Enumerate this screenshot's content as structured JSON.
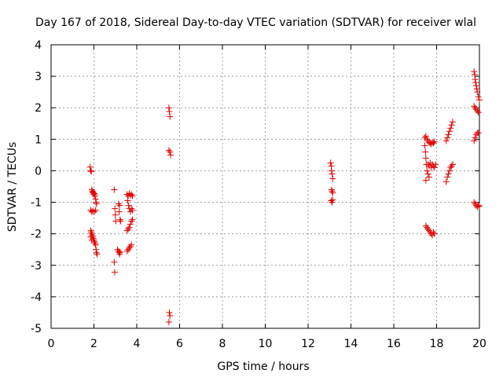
{
  "chart_data": {
    "type": "scatter",
    "title": "Day 167 of 2018, Sidereal Day-to-day VTEC variation (SDTVAR) for receiver wlal",
    "xlabel": "GPS time / hours",
    "ylabel": "SDTVAR / TECUs",
    "xlim": [
      0,
      20
    ],
    "ylim": [
      -5,
      4
    ],
    "xticks": [
      "0",
      "2",
      "4",
      "6",
      "8",
      "10",
      "12",
      "14",
      "16",
      "18",
      "20"
    ],
    "yticks": [
      "4",
      "3",
      "2",
      "1",
      "0",
      "-1",
      "-2",
      "-3",
      "-4",
      "-5"
    ],
    "grid": true,
    "marker": "+",
    "color": "#e00000",
    "series": [
      {
        "name": "SDTVAR",
        "points": [
          [
            1.82,
            0.12
          ],
          [
            1.85,
            0.0
          ],
          [
            1.88,
            -0.02
          ],
          [
            1.9,
            -0.6
          ],
          [
            1.93,
            -0.65
          ],
          [
            1.95,
            -0.7
          ],
          [
            1.97,
            -0.68
          ],
          [
            2.0,
            -0.75
          ],
          [
            2.02,
            -0.72
          ],
          [
            2.05,
            -0.8
          ],
          [
            2.08,
            -0.9
          ],
          [
            2.1,
            -1.0
          ],
          [
            2.12,
            -1.05
          ],
          [
            1.85,
            -1.25
          ],
          [
            1.9,
            -1.3
          ],
          [
            1.95,
            -1.28
          ],
          [
            2.02,
            -1.3
          ],
          [
            2.08,
            -1.25
          ],
          [
            1.85,
            -1.9
          ],
          [
            1.88,
            -1.95
          ],
          [
            1.9,
            -2.0
          ],
          [
            1.92,
            -2.05
          ],
          [
            1.95,
            -2.1
          ],
          [
            1.97,
            -2.15
          ],
          [
            2.0,
            -2.2
          ],
          [
            2.02,
            -2.25
          ],
          [
            2.05,
            -2.3
          ],
          [
            2.08,
            -2.35
          ],
          [
            2.1,
            -2.5
          ],
          [
            2.12,
            -2.6
          ],
          [
            2.15,
            -2.65
          ],
          [
            1.85,
            -2.1
          ],
          [
            1.9,
            -2.2
          ],
          [
            2.95,
            -0.6
          ],
          [
            2.98,
            -1.2
          ],
          [
            3.0,
            -1.4
          ],
          [
            3.02,
            -1.6
          ],
          [
            3.15,
            -1.05
          ],
          [
            3.2,
            -1.1
          ],
          [
            3.18,
            -1.3
          ],
          [
            3.22,
            -1.55
          ],
          [
            3.25,
            -1.6
          ],
          [
            3.1,
            -2.5
          ],
          [
            3.15,
            -2.55
          ],
          [
            3.18,
            -2.6
          ],
          [
            3.2,
            -2.65
          ],
          [
            3.22,
            -2.58
          ],
          [
            2.95,
            -2.9
          ],
          [
            2.97,
            -3.22
          ],
          [
            3.55,
            -0.75
          ],
          [
            3.6,
            -0.8
          ],
          [
            3.65,
            -0.72
          ],
          [
            3.7,
            -0.78
          ],
          [
            3.75,
            -0.75
          ],
          [
            3.8,
            -0.8
          ],
          [
            3.58,
            -0.95
          ],
          [
            3.62,
            -1.1
          ],
          [
            3.66,
            -1.2
          ],
          [
            3.7,
            -1.3
          ],
          [
            3.75,
            -1.2
          ],
          [
            3.8,
            -1.25
          ],
          [
            3.55,
            -1.9
          ],
          [
            3.6,
            -1.85
          ],
          [
            3.65,
            -1.8
          ],
          [
            3.7,
            -1.7
          ],
          [
            3.75,
            -1.6
          ],
          [
            3.8,
            -1.55
          ],
          [
            3.55,
            -2.55
          ],
          [
            3.6,
            -2.5
          ],
          [
            3.65,
            -2.45
          ],
          [
            3.7,
            -2.4
          ],
          [
            3.75,
            -2.35
          ],
          [
            5.5,
            2.0
          ],
          [
            5.52,
            1.88
          ],
          [
            5.55,
            1.72
          ],
          [
            5.5,
            0.65
          ],
          [
            5.55,
            0.6
          ],
          [
            5.58,
            0.5
          ],
          [
            5.52,
            -4.5
          ],
          [
            5.55,
            -4.6
          ],
          [
            5.5,
            -4.8
          ],
          [
            13.05,
            0.25
          ],
          [
            13.08,
            0.15
          ],
          [
            13.1,
            0.0
          ],
          [
            13.12,
            -0.1
          ],
          [
            13.15,
            -0.25
          ],
          [
            13.1,
            -0.6
          ],
          [
            13.12,
            -0.65
          ],
          [
            13.15,
            -0.7
          ],
          [
            13.08,
            -0.95
          ],
          [
            13.12,
            -1.0
          ],
          [
            13.15,
            -0.92
          ],
          [
            17.45,
            1.05
          ],
          [
            17.5,
            1.1
          ],
          [
            17.55,
            1.0
          ],
          [
            17.6,
            0.95
          ],
          [
            17.65,
            0.9
          ],
          [
            17.7,
            0.88
          ],
          [
            17.75,
            0.85
          ],
          [
            17.8,
            0.9
          ],
          [
            17.85,
            0.88
          ],
          [
            17.9,
            0.92
          ],
          [
            17.45,
            0.8
          ],
          [
            17.48,
            0.6
          ],
          [
            17.5,
            0.4
          ],
          [
            17.52,
            0.2
          ],
          [
            17.55,
            0.0
          ],
          [
            17.6,
            -0.1
          ],
          [
            17.65,
            -0.2
          ],
          [
            17.5,
            -0.3
          ],
          [
            17.6,
            0.2
          ],
          [
            17.65,
            0.15
          ],
          [
            17.7,
            0.25
          ],
          [
            17.75,
            0.1
          ],
          [
            17.8,
            0.2
          ],
          [
            17.85,
            0.15
          ],
          [
            17.9,
            0.1
          ],
          [
            17.95,
            0.2
          ],
          [
            17.5,
            -1.75
          ],
          [
            17.55,
            -1.8
          ],
          [
            17.6,
            -1.85
          ],
          [
            17.65,
            -1.9
          ],
          [
            17.7,
            -1.95
          ],
          [
            17.75,
            -2.0
          ],
          [
            17.8,
            -2.05
          ],
          [
            17.85,
            -1.95
          ],
          [
            17.9,
            -2.0
          ],
          [
            18.45,
            0.95
          ],
          [
            18.5,
            1.05
          ],
          [
            18.55,
            1.15
          ],
          [
            18.6,
            1.25
          ],
          [
            18.65,
            1.35
          ],
          [
            18.7,
            1.45
          ],
          [
            18.75,
            1.55
          ],
          [
            18.45,
            -0.35
          ],
          [
            18.5,
            -0.2
          ],
          [
            18.55,
            -0.1
          ],
          [
            18.6,
            0.0
          ],
          [
            18.65,
            0.1
          ],
          [
            18.7,
            0.15
          ],
          [
            18.75,
            0.2
          ],
          [
            19.75,
            3.15
          ],
          [
            19.78,
            3.05
          ],
          [
            19.8,
            2.9
          ],
          [
            19.82,
            2.8
          ],
          [
            19.85,
            2.7
          ],
          [
            19.88,
            2.6
          ],
          [
            19.9,
            2.5
          ],
          [
            19.95,
            2.35
          ],
          [
            20.0,
            2.25
          ],
          [
            19.75,
            2.05
          ],
          [
            19.8,
            2.0
          ],
          [
            19.85,
            1.95
          ],
          [
            19.9,
            1.9
          ],
          [
            19.95,
            1.85
          ],
          [
            19.75,
            0.95
          ],
          [
            19.8,
            1.05
          ],
          [
            19.85,
            1.15
          ],
          [
            19.9,
            1.2
          ],
          [
            19.95,
            1.2
          ],
          [
            19.75,
            -1.0
          ],
          [
            19.8,
            -1.05
          ],
          [
            19.85,
            -1.1
          ],
          [
            19.9,
            -1.15
          ],
          [
            19.95,
            -1.1
          ],
          [
            20.0,
            -1.12
          ]
        ]
      }
    ]
  }
}
